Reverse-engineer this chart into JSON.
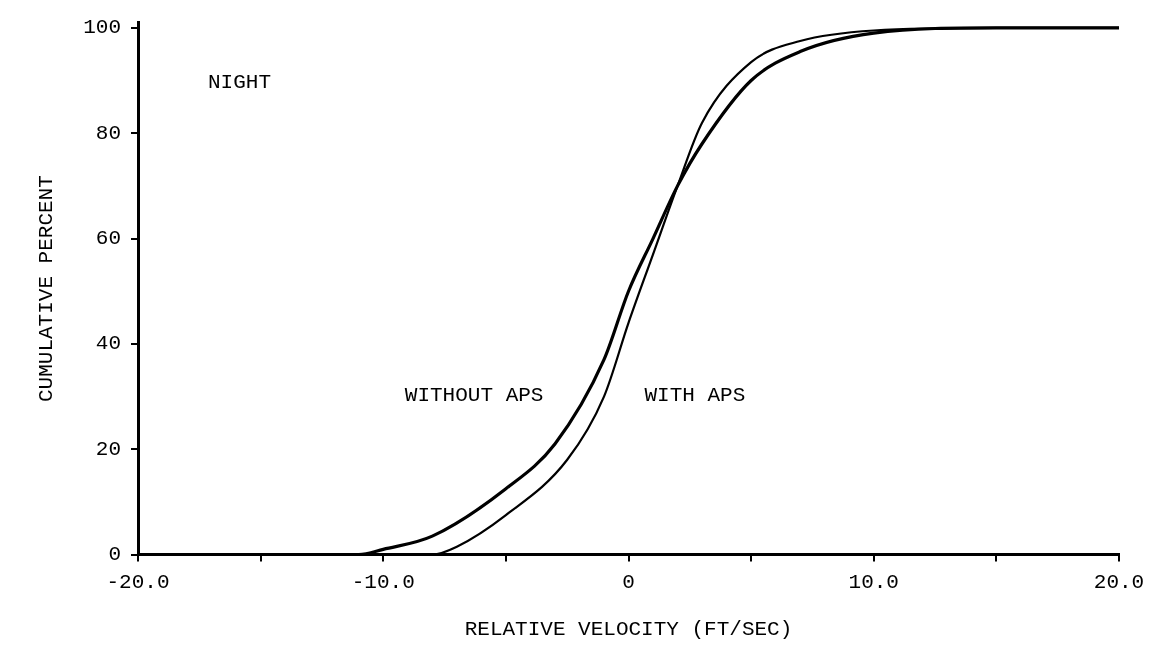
{
  "chart_data": {
    "type": "line",
    "xlabel": "RELATIVE VELOCITY (FT/SEC)",
    "ylabel": "CUMULATIVE PERCENT",
    "annotations": [
      "NIGHT"
    ],
    "xlim": [
      -20,
      20
    ],
    "xticks": [
      {
        "value": -20,
        "label": "-20.0"
      },
      {
        "value": -15,
        "label": null
      },
      {
        "value": -10,
        "label": "-10.0"
      },
      {
        "value": -5,
        "label": null
      },
      0,
      {
        "value": 5,
        "label": null
      },
      {
        "value": 10,
        "label": "10.0"
      },
      {
        "value": 15,
        "label": null
      },
      {
        "value": 20,
        "label": "20.0"
      }
    ],
    "ylim": [
      0,
      101
    ],
    "yticks": [
      0,
      20,
      40,
      60,
      80,
      100
    ],
    "legend": false,
    "marker": "none",
    "line_style": "solid",
    "series": [
      {
        "name": "WITHOUT APS",
        "color": "#000000",
        "x": [
          -20,
          -11,
          -10,
          -8,
          -5,
          -3,
          -1,
          0,
          1,
          2,
          3,
          5,
          7,
          10,
          15,
          20
        ],
        "values": [
          0,
          0,
          1,
          3.5,
          12.5,
          21,
          37,
          50,
          60,
          70,
          78,
          90,
          95.5,
          99,
          100,
          100
        ]
      },
      {
        "name": "WITH APS",
        "color": "#000000",
        "x": [
          -20,
          -8,
          -7,
          -5,
          -2.5,
          -1,
          0,
          1,
          2,
          3,
          5,
          7,
          10,
          15,
          20
        ],
        "values": [
          0,
          0,
          1.5,
          7.5,
          18,
          30,
          44,
          57,
          70,
          82,
          93.5,
          97.5,
          99.5,
          100,
          100
        ]
      }
    ]
  }
}
